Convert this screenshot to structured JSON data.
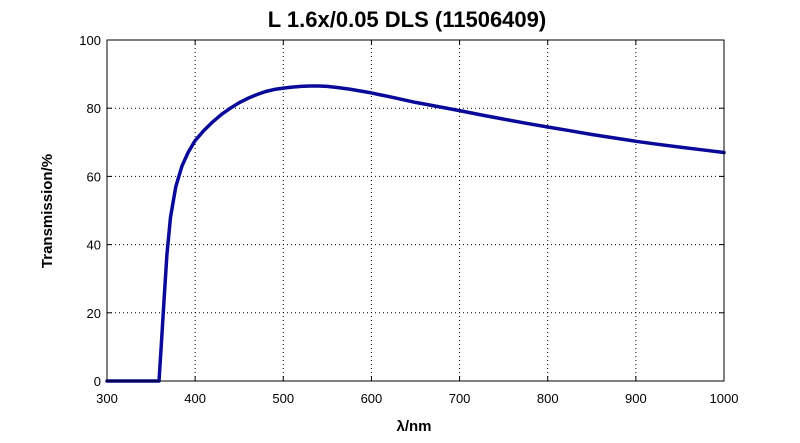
{
  "chart_data": {
    "type": "line",
    "title": "L 1.6x/0.05 DLS (11506409)",
    "xlabel": "λ/nm",
    "ylabel": "Transmission/%",
    "xlim": [
      300,
      1000
    ],
    "ylim": [
      0,
      100
    ],
    "x_ticks": [
      300,
      400,
      500,
      600,
      700,
      800,
      900,
      1000
    ],
    "y_ticks": [
      0,
      20,
      40,
      60,
      80,
      100
    ],
    "grid": true,
    "grid_style": "dotted",
    "legend": "none",
    "series_color": "#0a0a9a",
    "series": [
      {
        "x": [
          300,
          340,
          359,
          362,
          365,
          368,
          372,
          378,
          385,
          392,
          400,
          410,
          420,
          430,
          440,
          450,
          460,
          470,
          480,
          490,
          500,
          510,
          520,
          530,
          540,
          550,
          560,
          575,
          600,
          625,
          650,
          675,
          700,
          725,
          750,
          775,
          800,
          825,
          850,
          875,
          900,
          925,
          950,
          975,
          1000
        ],
        "y": [
          0,
          0,
          0,
          12,
          25,
          37,
          48,
          57,
          63,
          67,
          70.5,
          73.5,
          76,
          78.2,
          80,
          81.6,
          82.9,
          84,
          84.9,
          85.5,
          85.9,
          86.2,
          86.4,
          86.5,
          86.5,
          86.4,
          86.1,
          85.6,
          84.5,
          83.1,
          81.7,
          80.5,
          79.3,
          78,
          76.8,
          75.6,
          74.5,
          73.4,
          72.3,
          71.3,
          70.3,
          69.4,
          68.6,
          67.8,
          67
        ]
      }
    ]
  }
}
